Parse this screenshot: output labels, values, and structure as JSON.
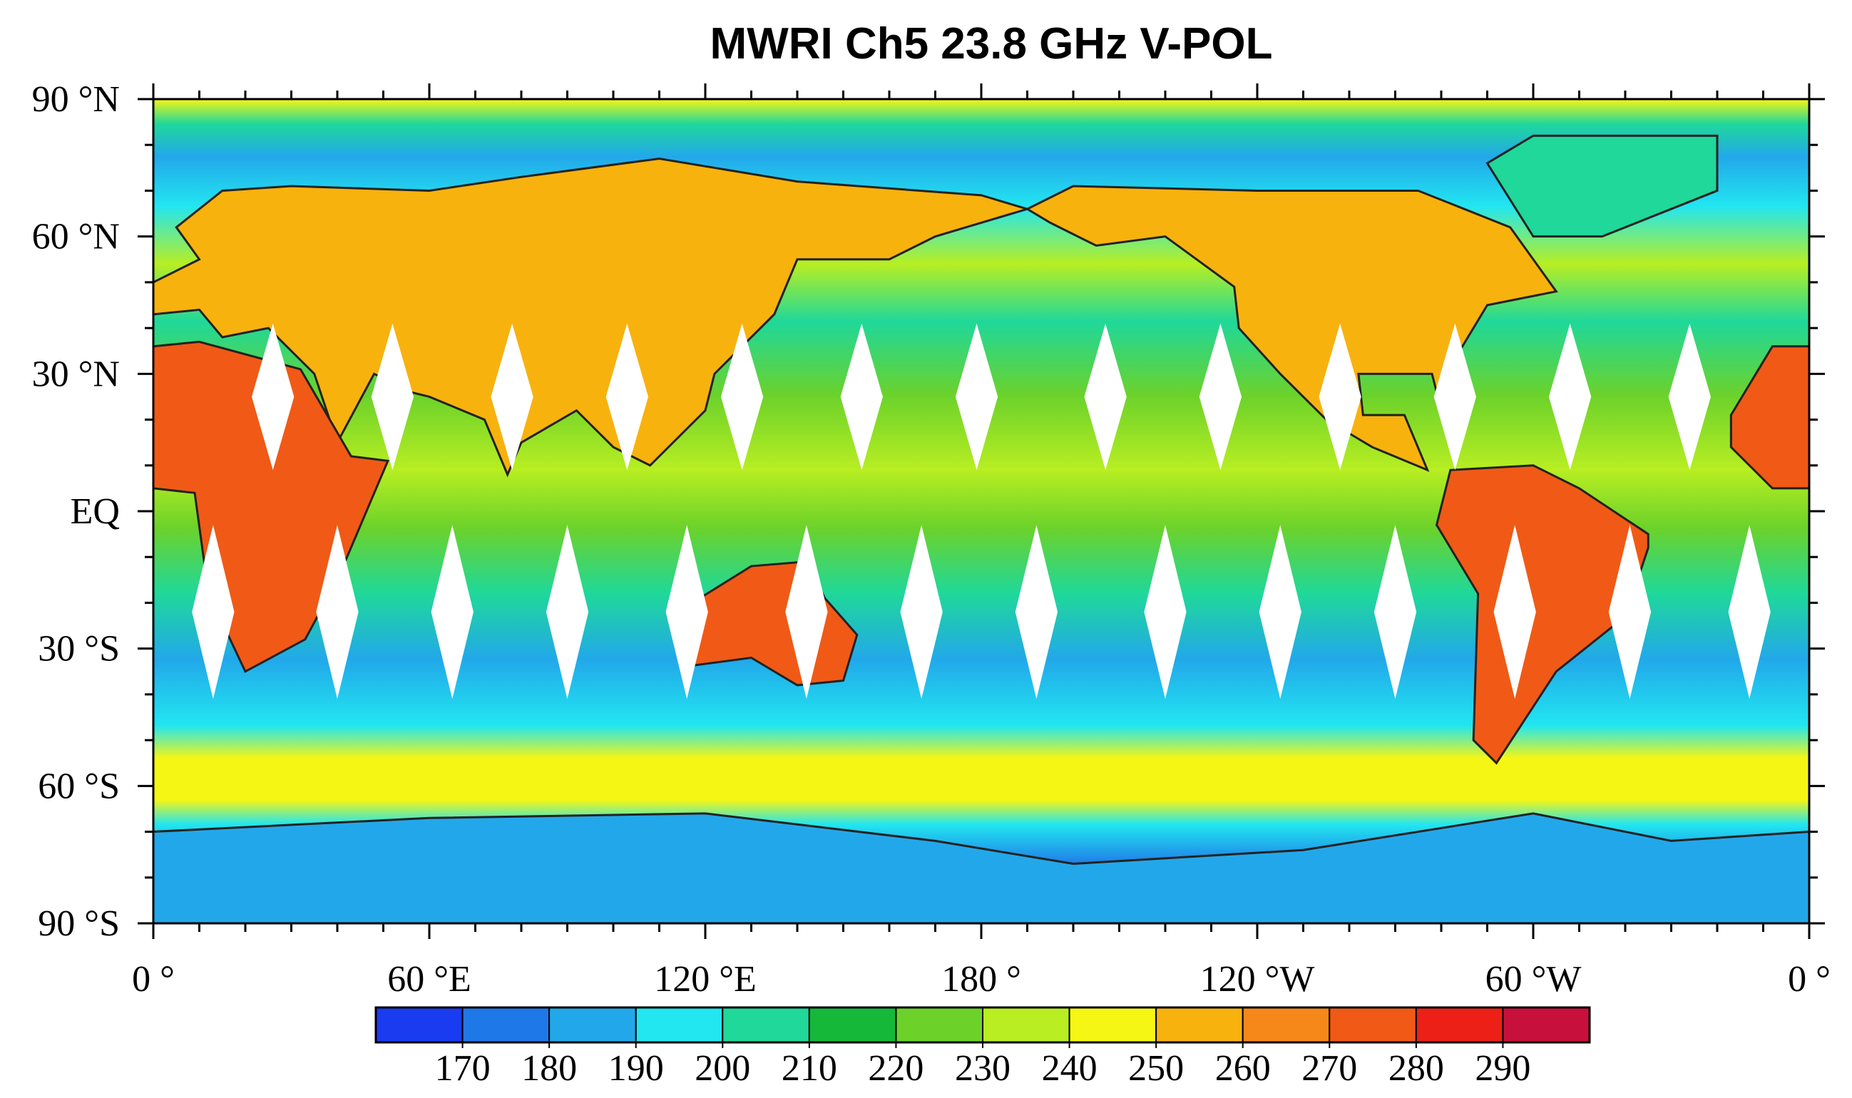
{
  "title": "MWRI Ch5 23.8 GHz V-POL",
  "map": {
    "lat_labels": [
      "90 °N",
      "60 °N",
      "30 °N",
      "EQ",
      "30 °S",
      "60 °S",
      "90 °S"
    ],
    "lon_labels": [
      "0 °",
      "60 °E",
      "120 °E",
      "180 °",
      "120 °W",
      "60 °W",
      "0 °"
    ]
  },
  "colorbar": {
    "colors": [
      "#1a3cf0",
      "#1f78e8",
      "#22a8ea",
      "#22e6f0",
      "#1fd89a",
      "#16b83a",
      "#6cd22a",
      "#b8ee22",
      "#f6f614",
      "#f8b20e",
      "#f6881a",
      "#f05a16",
      "#ec2016",
      "#c8103c"
    ],
    "ticks": [
      170,
      180,
      190,
      200,
      210,
      220,
      230,
      240,
      250,
      260,
      270,
      280,
      290
    ]
  }
}
